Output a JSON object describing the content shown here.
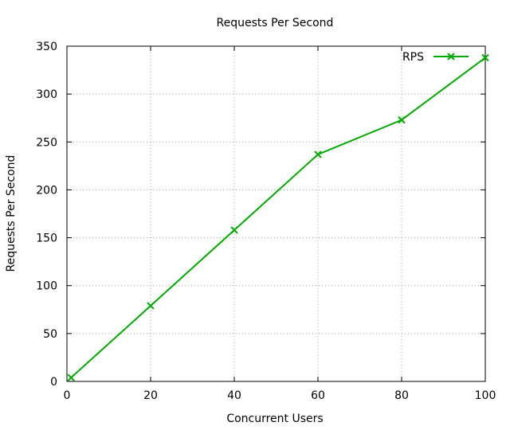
{
  "chart_data": {
    "type": "line",
    "title": "Requests Per Second",
    "xlabel": "Concurrent Users",
    "ylabel": "Requests Per Second",
    "xlim": [
      0,
      100
    ],
    "ylim": [
      0,
      350
    ],
    "xticks": [
      0,
      20,
      40,
      60,
      80,
      100
    ],
    "yticks": [
      0,
      50,
      100,
      150,
      200,
      250,
      300,
      350
    ],
    "grid": true,
    "legend_position": "top-right",
    "series": [
      {
        "name": "RPS",
        "color": "#00aa00",
        "marker": "x",
        "x": [
          1,
          20,
          40,
          60,
          80,
          100
        ],
        "y": [
          4,
          79,
          158,
          237,
          273,
          338
        ]
      }
    ]
  }
}
